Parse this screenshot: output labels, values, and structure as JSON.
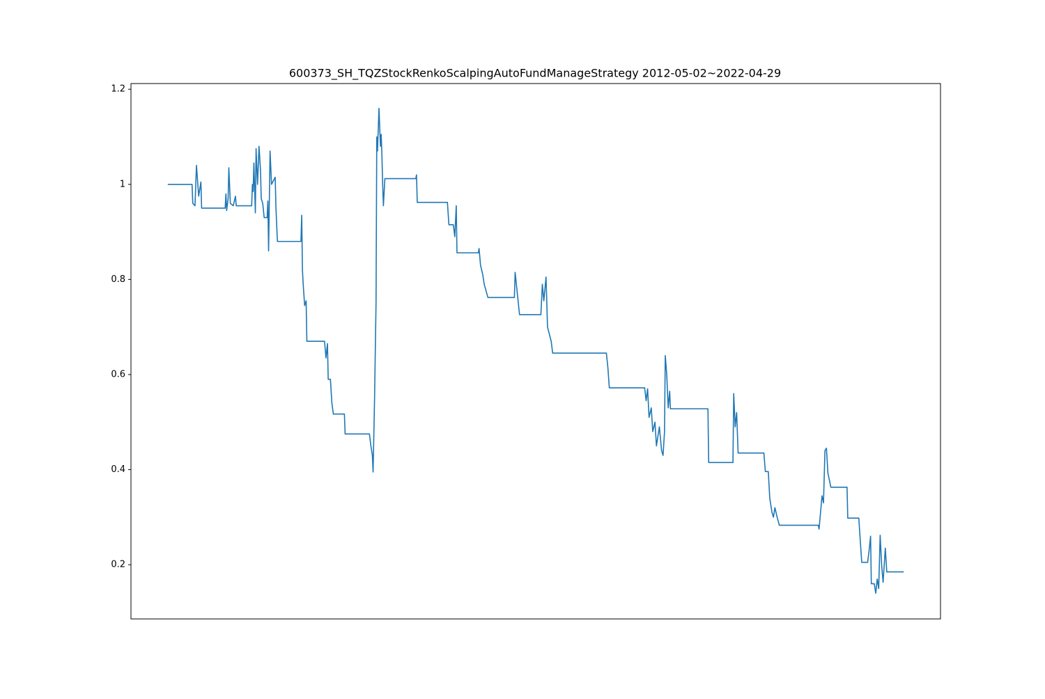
{
  "chart_data": {
    "type": "line",
    "title": "600373_SH_TQZStockRenkoScalpingAutoFundManageStrategy   2012-05-02~2022-04-29",
    "x": [
      0,
      3.3,
      3.4,
      3.7,
      3.9,
      4.2,
      4.5,
      4.6,
      7.8,
      7.9,
      8.0,
      8.2,
      8.3,
      8.5,
      8.9,
      9.2,
      9.3,
      11.4,
      11.5,
      11.6,
      11.7,
      11.9,
      12.0,
      12.2,
      12.4,
      12.6,
      12.7,
      12.9,
      13.1,
      13.5,
      13.6,
      13.7,
      13.9,
      14.1,
      14.6,
      14.7,
      14.9,
      18.1,
      18.2,
      18.3,
      18.4,
      18.6,
      18.8,
      18.9,
      21.3,
      21.5,
      21.7,
      21.8,
      22.1,
      22.3,
      22.5,
      24.0,
      24.1,
      27.4,
      27.6,
      27.8,
      27.9,
      28.1,
      28.3,
      28.4,
      28.5,
      28.7,
      28.9,
      29.0,
      29.1,
      29.2,
      29.3,
      29.5,
      33.7,
      33.8,
      33.9,
      38.0,
      38.2,
      38.8,
      39.0,
      39.2,
      39.3,
      42.2,
      42.3,
      42.5,
      42.8,
      43.0,
      43.5,
      47.1,
      47.2,
      47.4,
      47.8,
      50.7,
      50.9,
      51.1,
      51.4,
      51.6,
      52.1,
      52.3,
      59.6,
      59.8,
      60.0,
      64.8,
      65.0,
      65.2,
      65.4,
      65.7,
      65.9,
      66.2,
      66.4,
      66.8,
      67.1,
      67.3,
      67.5,
      67.6,
      67.8,
      68.0,
      68.2,
      68.3,
      73.4,
      73.5,
      76.8,
      76.9,
      77.1,
      77.3,
      77.5,
      81.0,
      81.2,
      81.6,
      81.8,
      82.1,
      82.3,
      82.5,
      82.8,
      83.1,
      88.4,
      88.5,
      88.7,
      88.9,
      89.1,
      89.3,
      89.5,
      89.7,
      90.1,
      92.3,
      92.4,
      93.9,
      94.1,
      94.3,
      95.1,
      95.3,
      95.5,
      95.6,
      96.0,
      96.2,
      96.4,
      96.6,
      96.8,
      97.0,
      97.2,
      97.5,
      97.7,
      100
    ],
    "series": [
      {
        "color": "#1f77b4",
        "values": [
          1.0,
          1.0,
          0.96,
          0.955,
          1.04,
          0.975,
          1.005,
          0.95,
          0.95,
          0.98,
          0.945,
          0.97,
          1.035,
          0.96,
          0.955,
          0.975,
          0.955,
          0.955,
          1.0,
          0.985,
          1.045,
          0.94,
          1.075,
          1.0,
          1.08,
          1.03,
          0.97,
          0.96,
          0.93,
          0.93,
          0.965,
          0.86,
          1.07,
          1.0,
          1.015,
          0.95,
          0.88,
          0.88,
          0.935,
          0.82,
          0.79,
          0.745,
          0.755,
          0.67,
          0.67,
          0.635,
          0.665,
          0.59,
          0.59,
          0.54,
          0.517,
          0.517,
          0.475,
          0.475,
          0.45,
          0.43,
          0.395,
          0.55,
          0.75,
          1.1,
          1.07,
          1.16,
          1.08,
          1.105,
          1.06,
          1.0,
          0.955,
          1.012,
          1.012,
          1.02,
          0.962,
          0.962,
          0.915,
          0.915,
          0.89,
          0.955,
          0.856,
          0.856,
          0.865,
          0.83,
          0.81,
          0.79,
          0.762,
          0.762,
          0.815,
          0.785,
          0.726,
          0.726,
          0.79,
          0.755,
          0.805,
          0.7,
          0.67,
          0.645,
          0.645,
          0.615,
          0.572,
          0.572,
          0.545,
          0.57,
          0.51,
          0.53,
          0.48,
          0.5,
          0.45,
          0.49,
          0.44,
          0.43,
          0.48,
          0.64,
          0.6,
          0.53,
          0.565,
          0.528,
          0.528,
          0.415,
          0.415,
          0.56,
          0.49,
          0.52,
          0.435,
          0.435,
          0.396,
          0.396,
          0.34,
          0.31,
          0.3,
          0.32,
          0.3,
          0.283,
          0.283,
          0.275,
          0.31,
          0.345,
          0.33,
          0.44,
          0.445,
          0.393,
          0.363,
          0.363,
          0.298,
          0.298,
          0.25,
          0.205,
          0.205,
          0.23,
          0.26,
          0.16,
          0.16,
          0.14,
          0.17,
          0.15,
          0.262,
          0.2,
          0.163,
          0.235,
          0.185,
          0.185
        ]
      }
    ],
    "xlim": [
      -5,
      105
    ],
    "ylim": [
      0.086,
      1.212
    ],
    "yticks": [
      0.2,
      0.4,
      0.6,
      0.8,
      1.0,
      1.2
    ]
  }
}
